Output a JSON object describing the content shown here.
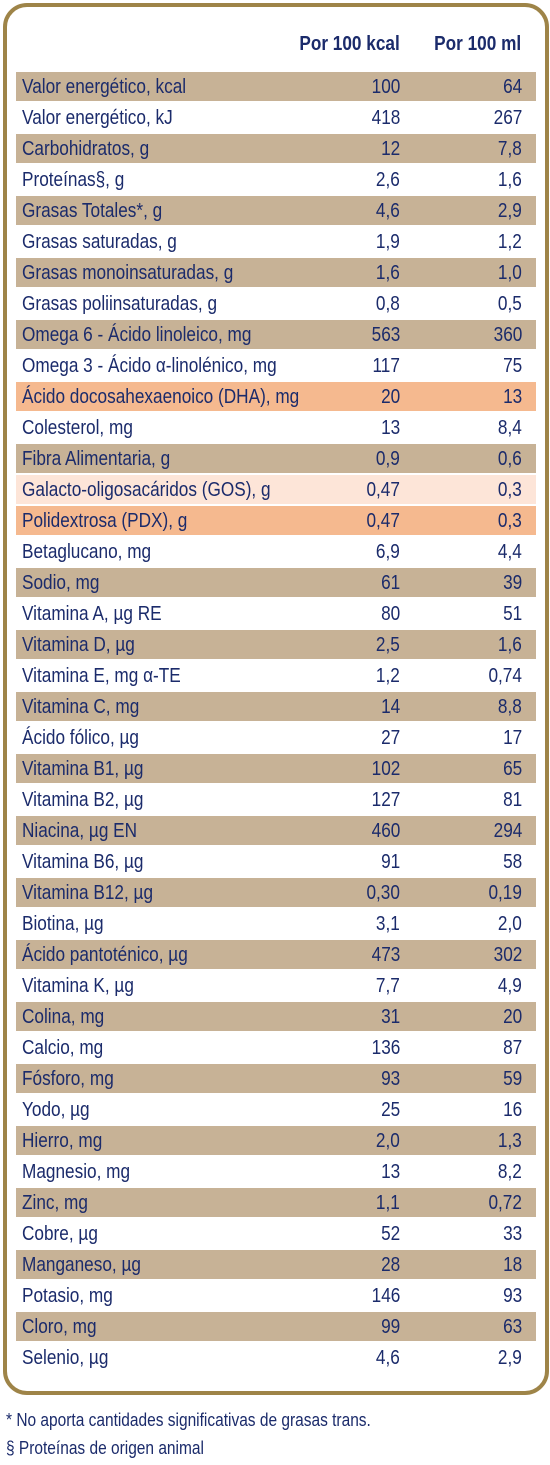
{
  "colors": {
    "border": "#9e8448",
    "row_tan": "#c7b296",
    "row_white": "#ffffff",
    "row_orange": "#f5b98f",
    "row_pink": "#fde5d8",
    "text": "#1b2b6b"
  },
  "header": {
    "col1": "Por 100 kcal",
    "col2": "Por 100 ml"
  },
  "rows": [
    {
      "label": "Valor energético, kcal",
      "v1": "100",
      "v2": "64",
      "style": "tan"
    },
    {
      "label": "Valor energético, kJ",
      "v1": "418",
      "v2": "267",
      "style": "white"
    },
    {
      "label": "Carbohidratos, g",
      "v1": "12",
      "v2": "7,8",
      "style": "tan"
    },
    {
      "label": "Proteínas§, g",
      "v1": "2,6",
      "v2": "1,6",
      "style": "white"
    },
    {
      "label": "Grasas Totales*, g",
      "v1": "4,6",
      "v2": "2,9",
      "style": "tan"
    },
    {
      "label": "Grasas saturadas, g",
      "v1": "1,9",
      "v2": "1,2",
      "style": "white"
    },
    {
      "label": "Grasas monoinsaturadas, g",
      "v1": "1,6",
      "v2": "1,0",
      "style": "tan"
    },
    {
      "label": "Grasas poliinsaturadas, g",
      "v1": "0,8",
      "v2": "0,5",
      "style": "white"
    },
    {
      "label": "Omega 6 - Ácido linoleico, mg",
      "v1": "563",
      "v2": "360",
      "style": "tan"
    },
    {
      "label": "Omega 3 - Ácido α-linolénico, mg",
      "v1": "117",
      "v2": "75",
      "style": "white"
    },
    {
      "label": "Ácido docosahexaenoico (DHA), mg",
      "v1": "20",
      "v2": "13",
      "style": "orange"
    },
    {
      "label": "Colesterol, mg",
      "v1": "13",
      "v2": "8,4",
      "style": "white"
    },
    {
      "label": "Fibra Alimentaria, g",
      "v1": "0,9",
      "v2": "0,6",
      "style": "tan"
    },
    {
      "label": "Galacto-oligosacáridos (GOS), g",
      "v1": "0,47",
      "v2": "0,3",
      "style": "pink"
    },
    {
      "label": "Polidextrosa (PDX), g",
      "v1": "0,47",
      "v2": "0,3",
      "style": "orange"
    },
    {
      "label": "Betaglucano, mg",
      "v1": "6,9",
      "v2": "4,4",
      "style": "white"
    },
    {
      "label": "Sodio, mg",
      "v1": "61",
      "v2": "39",
      "style": "tan"
    },
    {
      "label": "Vitamina A, µg RE",
      "v1": "80",
      "v2": "51",
      "style": "white"
    },
    {
      "label": "Vitamina D, µg",
      "v1": "2,5",
      "v2": "1,6",
      "style": "tan"
    },
    {
      "label": "Vitamina E, mg α-TE",
      "v1": "1,2",
      "v2": "0,74",
      "style": "white"
    },
    {
      "label": "Vitamina C, mg",
      "v1": "14",
      "v2": "8,8",
      "style": "tan"
    },
    {
      "label": "Ácido fólico, µg",
      "v1": "27",
      "v2": "17",
      "style": "white"
    },
    {
      "label": "Vitamina B1, µg",
      "v1": "102",
      "v2": "65",
      "style": "tan"
    },
    {
      "label": "Vitamina B2, µg",
      "v1": "127",
      "v2": "81",
      "style": "white"
    },
    {
      "label": "Niacina, µg EN",
      "v1": "460",
      "v2": "294",
      "style": "tan"
    },
    {
      "label": "Vitamina B6, µg",
      "v1": "91",
      "v2": "58",
      "style": "white"
    },
    {
      "label": "Vitamina B12, µg",
      "v1": "0,30",
      "v2": "0,19",
      "style": "tan"
    },
    {
      "label": "Biotina, µg",
      "v1": "3,1",
      "v2": "2,0",
      "style": "white"
    },
    {
      "label": "Ácido pantoténico,  µg",
      "v1": "473",
      "v2": "302",
      "style": "tan"
    },
    {
      "label": "Vitamina K, µg",
      "v1": "7,7",
      "v2": "4,9",
      "style": "white"
    },
    {
      "label": "Colina, mg",
      "v1": "31",
      "v2": "20",
      "style": "tan"
    },
    {
      "label": "Calcio, mg",
      "v1": "136",
      "v2": "87",
      "style": "white"
    },
    {
      "label": "Fósforo, mg",
      "v1": "93",
      "v2": "59",
      "style": "tan"
    },
    {
      "label": "Yodo, µg",
      "v1": "25",
      "v2": "16",
      "style": "white"
    },
    {
      "label": "Hierro, mg",
      "v1": "2,0",
      "v2": "1,3",
      "style": "tan"
    },
    {
      "label": "Magnesio, mg",
      "v1": "13",
      "v2": "8,2",
      "style": "white"
    },
    {
      "label": "Zinc, mg",
      "v1": "1,1",
      "v2": "0,72",
      "style": "tan"
    },
    {
      "label": "Cobre, µg",
      "v1": "52",
      "v2": "33",
      "style": "white"
    },
    {
      "label": "Manganeso, µg",
      "v1": "28",
      "v2": "18",
      "style": "tan"
    },
    {
      "label": "Potasio, mg",
      "v1": "146",
      "v2": "93",
      "style": "white"
    },
    {
      "label": "Cloro, mg",
      "v1": "99",
      "v2": "63",
      "style": "tan"
    },
    {
      "label": "Selenio, µg",
      "v1": "4,6",
      "v2": "2,9",
      "style": "white"
    }
  ],
  "notes": [
    "* No aporta cantidades significativas de grasas trans.",
    "§ Proteínas de origen animal"
  ]
}
